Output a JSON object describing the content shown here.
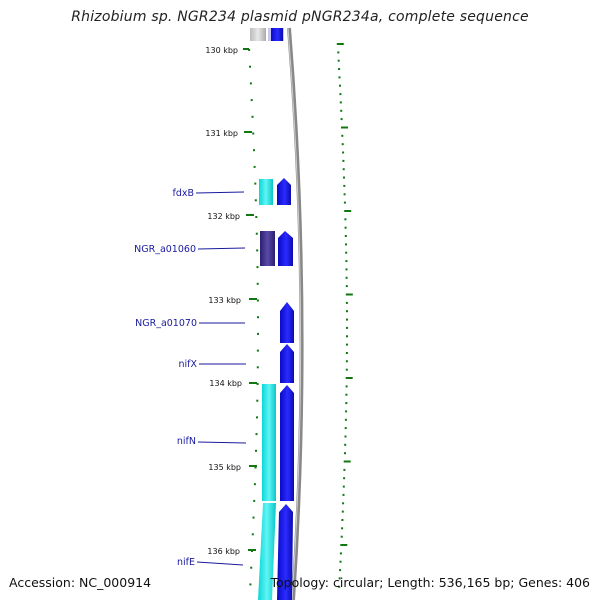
{
  "title": "Rhizobium sp. NGR234 plasmid pNGR234a, complete sequence",
  "footer": {
    "accession": "Accession: NC_000914",
    "summary": "Topology: circular; Length: 536,165 bp; Genes: 406"
  },
  "ticks": [
    "130 kbp",
    "131 kbp",
    "132 kbp",
    "133 kbp",
    "134 kbp",
    "135 kbp",
    "136 kbp"
  ],
  "genes": [
    "fdxB",
    "NGR_a01060",
    "NGR_a01070",
    "nifX",
    "nifN",
    "nifE"
  ],
  "colors": {
    "feature_blue": "#1010e8",
    "match_cyan": "#10e0e0",
    "match_purple": "#3a2e88",
    "label_blue": "#1a1a9e",
    "tick_green": "#117711",
    "backbone_gray": "#888888"
  }
}
